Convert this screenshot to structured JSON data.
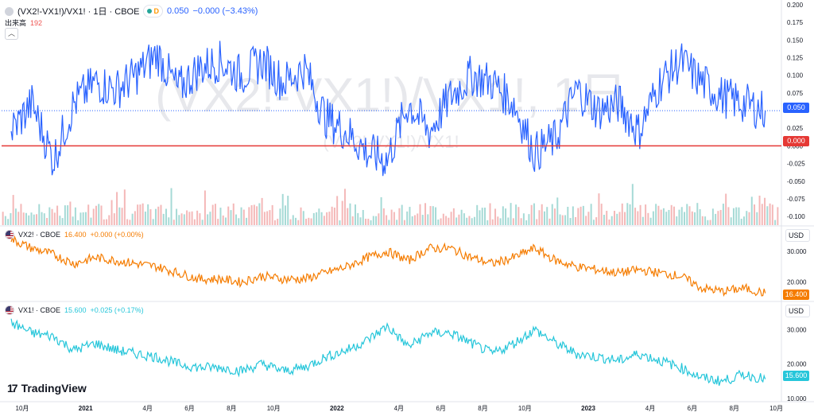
{
  "legend_top": {
    "symbol": "(VX2!-VX1!)/VX1! · 1日 · CBOE",
    "badge": "D",
    "value": "0.050",
    "change": "−0.000 (−3.43%)",
    "volume_label": "出来高",
    "volume_value": "192"
  },
  "legend_vx2": {
    "symbol": "VX2! · CBOE",
    "value": "16.400",
    "change": "+0.000 (+0.00%)"
  },
  "legend_vx1": {
    "symbol": "VX1! · CBOE",
    "value": "15.600",
    "change": "+0.025 (+0.17%)"
  },
  "watermark": {
    "main": "(VX2!-VX1!)/VX1!, 1日",
    "sub": "(VX2!-VX1!)/VX1!"
  },
  "currency": "USD",
  "logo": {
    "mark": "17",
    "text": "TradingView"
  },
  "colors": {
    "spread": "#2962ff",
    "vx2": "#f57c00",
    "vx1": "#26c6da",
    "zero_line": "#e53935",
    "vol_up": "#80cbc4",
    "vol_down": "#ef9a9a"
  },
  "icons": [
    "series-icon",
    "flag-us-icon",
    "chevron-up-icon",
    "tradingview-logo-icon"
  ],
  "chart_data": [
    {
      "type": "line",
      "name": "(VX2!-VX1!)/VX1!",
      "x": [
        "2020-09-15",
        "2020-10-15",
        "2020-11-15",
        "2020-12-15",
        "2021-01-15",
        "2021-02-15",
        "2021-03-15",
        "2021-04-15",
        "2021-05-15",
        "2021-06-15",
        "2021-07-15",
        "2021-08-15",
        "2021-09-15",
        "2021-10-15",
        "2021-11-15",
        "2021-12-15",
        "2022-01-15",
        "2022-02-15",
        "2022-03-15",
        "2022-04-15",
        "2022-05-15",
        "2022-06-15",
        "2022-07-15",
        "2022-08-15",
        "2022-09-15",
        "2022-10-15",
        "2022-11-15",
        "2022-12-15",
        "2023-01-15",
        "2023-02-15",
        "2023-03-15",
        "2023-04-15",
        "2023-05-15",
        "2023-06-15",
        "2023-07-15",
        "2023-08-15",
        "2023-09-15"
      ],
      "values": [
        0.02,
        0.06,
        -0.02,
        0.06,
        0.09,
        0.08,
        0.1,
        0.13,
        0.08,
        0.11,
        0.12,
        0.1,
        0.12,
        0.09,
        0.11,
        0.04,
        0.02,
        -0.01,
        -0.02,
        0.06,
        0.02,
        0.07,
        0.1,
        0.09,
        0.06,
        -0.01,
        0.01,
        0.08,
        0.05,
        0.06,
        0.02,
        0.09,
        0.12,
        0.09,
        0.07,
        0.06,
        0.05
      ],
      "ylim": [
        -0.11,
        0.2
      ],
      "yticks": [
        "0.200",
        "0.175",
        "0.150",
        "0.125",
        "0.100",
        "0.075",
        "0.050",
        "0.025",
        "0.000",
        "-0.025",
        "-0.050",
        "-0.075",
        "-0.100"
      ],
      "last_value_label": "0.050",
      "zero_label": "0.000",
      "volume": {
        "label": "出来高",
        "last": 192
      }
    },
    {
      "type": "line",
      "name": "VX2!",
      "x": [
        "2020-09-15",
        "2020-10-15",
        "2020-11-15",
        "2020-12-15",
        "2021-01-15",
        "2021-02-15",
        "2021-03-15",
        "2021-04-15",
        "2021-05-15",
        "2021-06-15",
        "2021-07-15",
        "2021-08-15",
        "2021-09-15",
        "2021-10-15",
        "2021-11-15",
        "2021-12-15",
        "2022-01-15",
        "2022-02-15",
        "2022-03-15",
        "2022-04-15",
        "2022-05-15",
        "2022-06-15",
        "2022-07-15",
        "2022-08-15",
        "2022-09-15",
        "2022-10-15",
        "2022-11-15",
        "2022-12-15",
        "2023-01-15",
        "2023-02-15",
        "2023-03-15",
        "2023-04-15",
        "2023-05-15",
        "2023-06-15",
        "2023-07-15",
        "2023-08-15",
        "2023-09-15"
      ],
      "values": [
        34,
        31,
        29,
        26,
        28,
        27,
        26,
        25,
        23,
        21,
        21,
        20,
        22,
        21,
        21,
        23,
        25,
        28,
        30,
        27,
        31,
        31,
        28,
        26,
        28,
        31,
        27,
        25,
        24,
        23,
        24,
        23,
        22,
        18,
        17,
        18,
        16.4
      ],
      "ylim": [
        15,
        37
      ],
      "yticks": [
        "30.000",
        "20.000"
      ],
      "last_value_label": "16.400"
    },
    {
      "type": "line",
      "name": "VX1!",
      "x": [
        "2020-09-15",
        "2020-10-15",
        "2020-11-15",
        "2020-12-15",
        "2021-01-15",
        "2021-02-15",
        "2021-03-15",
        "2021-04-15",
        "2021-05-15",
        "2021-06-15",
        "2021-07-15",
        "2021-08-15",
        "2021-09-15",
        "2021-10-15",
        "2021-11-15",
        "2021-12-15",
        "2022-01-15",
        "2022-02-15",
        "2022-03-15",
        "2022-04-15",
        "2022-05-15",
        "2022-06-15",
        "2022-07-15",
        "2022-08-15",
        "2022-09-15",
        "2022-10-15",
        "2022-11-15",
        "2022-12-15",
        "2023-01-15",
        "2023-02-15",
        "2023-03-15",
        "2023-04-15",
        "2023-05-15",
        "2023-06-15",
        "2023-07-15",
        "2023-08-15",
        "2023-09-15"
      ],
      "values": [
        32,
        29,
        28,
        24,
        26,
        24,
        23,
        22,
        20,
        19,
        19,
        18,
        20,
        18,
        19,
        22,
        24,
        27,
        31,
        25,
        29,
        29,
        26,
        23,
        26,
        30,
        26,
        23,
        22,
        21,
        23,
        21,
        19,
        16,
        15,
        17,
        15.6
      ],
      "ylim": [
        10,
        37
      ],
      "yticks": [
        "30.000",
        "20.000",
        "10.000"
      ],
      "last_value_label": "15.600"
    }
  ],
  "x_axis": {
    "ticks": [
      {
        "label": "10月",
        "date": "2020-10-01"
      },
      {
        "label": "2021",
        "date": "2021-01-01"
      },
      {
        "label": "4月",
        "date": "2021-04-01"
      },
      {
        "label": "6月",
        "date": "2021-06-01"
      },
      {
        "label": "8月",
        "date": "2021-08-01"
      },
      {
        "label": "10月",
        "date": "2021-10-01"
      },
      {
        "label": "2022",
        "date": "2022-01-01"
      },
      {
        "label": "4月",
        "date": "2022-04-01"
      },
      {
        "label": "6月",
        "date": "2022-06-01"
      },
      {
        "label": "8月",
        "date": "2022-08-01"
      },
      {
        "label": "10月",
        "date": "2022-10-01"
      },
      {
        "label": "2023",
        "date": "2023-01-01"
      },
      {
        "label": "4月",
        "date": "2023-04-01"
      },
      {
        "label": "6月",
        "date": "2023-06-01"
      },
      {
        "label": "8月",
        "date": "2023-08-01"
      },
      {
        "label": "10月",
        "date": "2023-10-01"
      }
    ],
    "range": [
      "2020-09-01",
      "2023-10-05"
    ]
  }
}
